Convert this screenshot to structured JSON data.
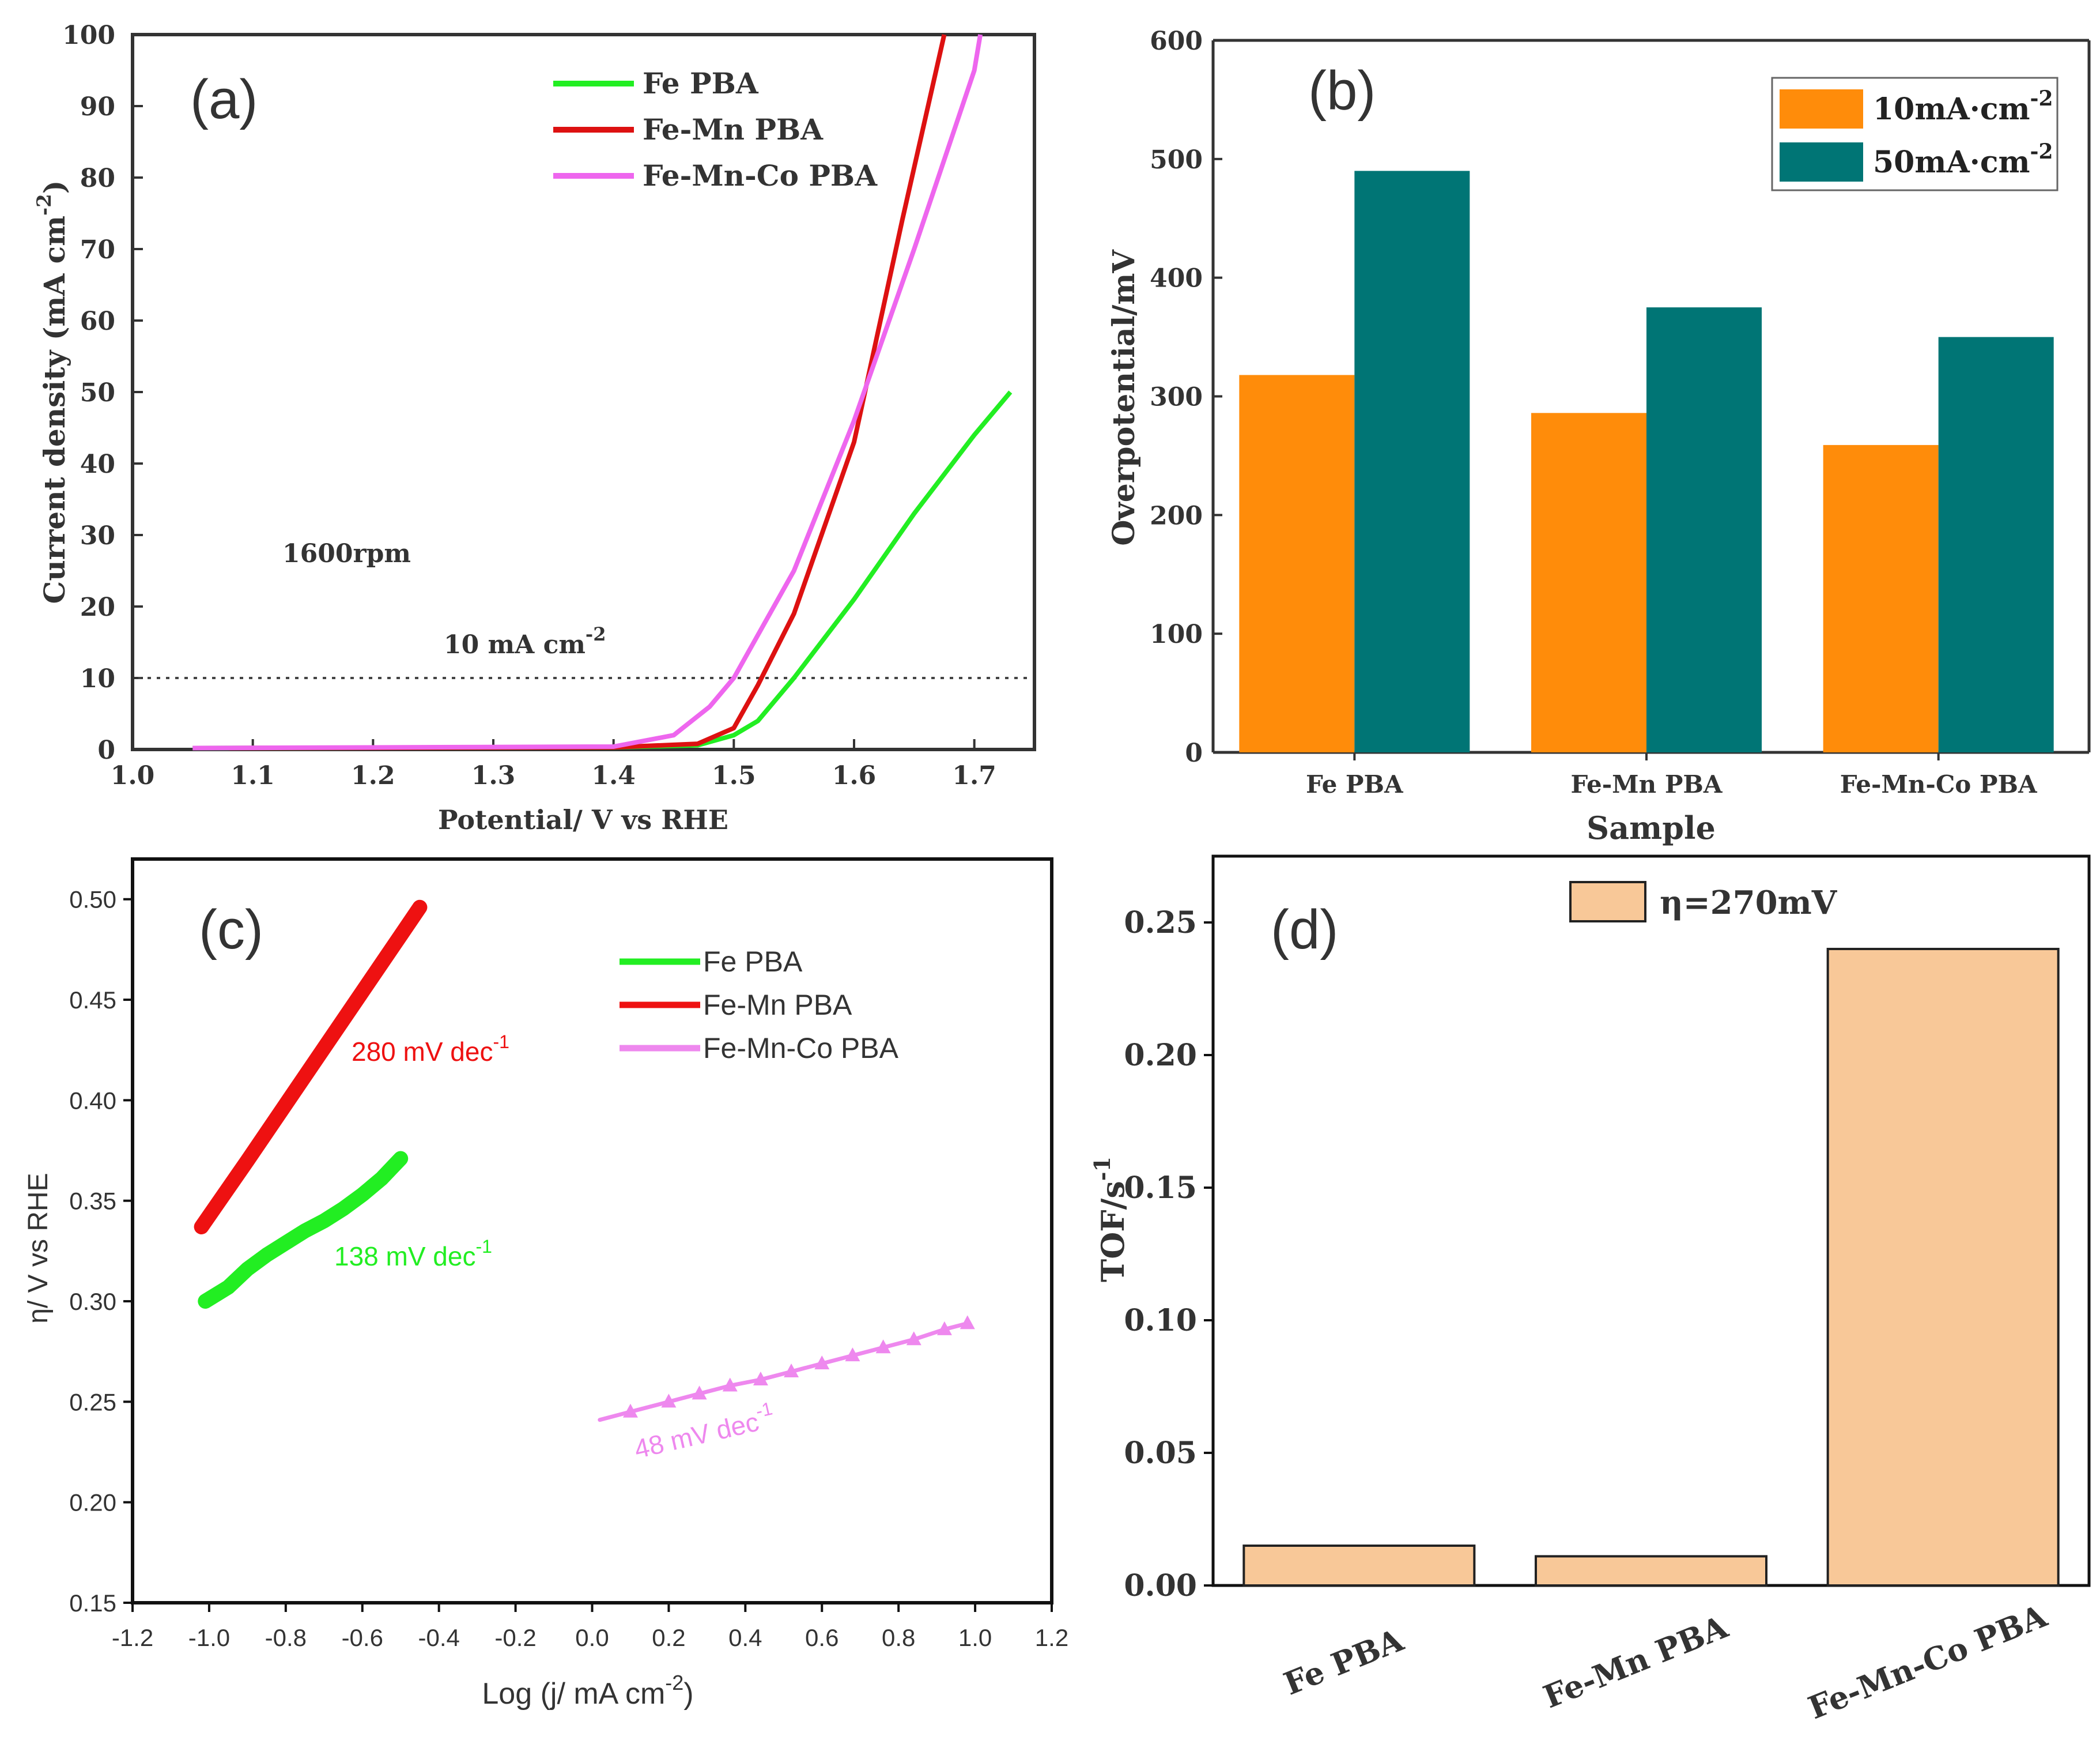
{
  "chart_data": [
    {
      "panel": "(a)",
      "type": "line",
      "xlabel": "Potential/ V vs RHE",
      "ylabel": "Current density (mA cm",
      "ylabel_sup": "-2",
      "ylabel_tail": ")",
      "xlim": [
        1.0,
        1.75
      ],
      "ylim": [
        0,
        100
      ],
      "xticks": [
        "1.0",
        "1.1",
        "1.2",
        "1.3",
        "1.4",
        "1.5",
        "1.6",
        "1.7"
      ],
      "yticks": [
        "0",
        "10",
        "20",
        "30",
        "40",
        "50",
        "60",
        "70",
        "80",
        "90",
        "100"
      ],
      "annotation_rpm": "1600rpm",
      "annotation_ref": "10 mA cm",
      "annotation_ref_sup": "-2",
      "reference_line_y": 10,
      "series": [
        {
          "name": "Fe PBA",
          "color": "#22ee22",
          "points": [
            [
              1.05,
              0.2
            ],
            [
              1.4,
              0.3
            ],
            [
              1.47,
              0.6
            ],
            [
              1.5,
              2
            ],
            [
              1.52,
              4
            ],
            [
              1.55,
              10
            ],
            [
              1.6,
              21
            ],
            [
              1.65,
              33
            ],
            [
              1.7,
              44
            ],
            [
              1.73,
              50
            ]
          ]
        },
        {
          "name": "Fe-Mn PBA",
          "color": "#dd1111",
          "points": [
            [
              1.08,
              0.2
            ],
            [
              1.4,
              0.3
            ],
            [
              1.47,
              0.8
            ],
            [
              1.5,
              3
            ],
            [
              1.52,
              9
            ],
            [
              1.55,
              19
            ],
            [
              1.6,
              43
            ],
            [
              1.64,
              74
            ],
            [
              1.675,
              100
            ]
          ]
        },
        {
          "name": "Fe-Mn-Co PBA",
          "color": "#ee66ee",
          "points": [
            [
              1.05,
              0.2
            ],
            [
              1.4,
              0.4
            ],
            [
              1.45,
              2
            ],
            [
              1.48,
              6
            ],
            [
              1.5,
              10
            ],
            [
              1.55,
              25
            ],
            [
              1.6,
              46
            ],
            [
              1.65,
              70
            ],
            [
              1.7,
              95
            ],
            [
              1.705,
              100
            ]
          ]
        }
      ]
    },
    {
      "panel": "(b)",
      "type": "bar",
      "xlabel": "Sample",
      "ylabel": "Overpotential/mV",
      "ylim": [
        0,
        600
      ],
      "yticks": [
        "0",
        "100",
        "200",
        "300",
        "400",
        "500",
        "600"
      ],
      "categories": [
        "Fe PBA",
        "Fe-Mn PBA",
        "Fe-Mn-Co PBA"
      ],
      "series": [
        {
          "name": "10mA·cm",
          "sup": "-2",
          "color": "#ff8c0a",
          "values": [
            318,
            286,
            259
          ]
        },
        {
          "name": "50mA·cm",
          "sup": "-2",
          "color": "#007575",
          "values": [
            490,
            375,
            350
          ]
        }
      ]
    },
    {
      "panel": "(c)",
      "type": "scatter",
      "xlabel": "Log (j/ mA cm",
      "xlabel_sup": "-2",
      "xlabel_tail": ")",
      "ylabel": "η/ V vs RHE",
      "xlim": [
        -1.2,
        1.2
      ],
      "ylim": [
        0.15,
        0.52
      ],
      "xticks": [
        "-1.2",
        "-1.0",
        "-0.8",
        "-0.6",
        "-0.4",
        "-0.2",
        "0.0",
        "0.2",
        "0.4",
        "0.6",
        "0.8",
        "1.0",
        "1.2"
      ],
      "yticks": [
        "0.15",
        "0.20",
        "0.25",
        "0.30",
        "0.35",
        "0.40",
        "0.45",
        "0.50"
      ],
      "series": [
        {
          "name": "Fe PBA",
          "color": "#22ee22",
          "slope_label": "138 mV dec",
          "slope_sup": "-1",
          "points": [
            [
              -1.01,
              0.3
            ],
            [
              -0.95,
              0.307
            ],
            [
              -0.9,
              0.316
            ],
            [
              -0.85,
              0.323
            ],
            [
              -0.8,
              0.329
            ],
            [
              -0.75,
              0.335
            ],
            [
              -0.7,
              0.34
            ],
            [
              -0.65,
              0.346
            ],
            [
              -0.6,
              0.353
            ],
            [
              -0.55,
              0.361
            ],
            [
              -0.5,
              0.371
            ]
          ]
        },
        {
          "name": "Fe-Mn PBA",
          "color": "#ee1111",
          "slope_label": "280 mV dec",
          "slope_sup": "-1",
          "points": [
            [
              -1.02,
              0.337
            ],
            [
              -0.9,
              0.37
            ],
            [
              -0.8,
              0.398
            ],
            [
              -0.7,
              0.426
            ],
            [
              -0.6,
              0.454
            ],
            [
              -0.5,
              0.482
            ],
            [
              -0.45,
              0.496
            ]
          ]
        },
        {
          "name": "Fe-Mn-Co PBA",
          "color": "#ee88ee",
          "slope_label": "48 mV dec",
          "slope_sup": "-1",
          "points": [
            [
              0.02,
              0.241
            ],
            [
              0.1,
              0.245
            ],
            [
              0.2,
              0.25
            ],
            [
              0.28,
              0.254
            ],
            [
              0.36,
              0.258
            ],
            [
              0.44,
              0.261
            ],
            [
              0.52,
              0.265
            ],
            [
              0.6,
              0.269
            ],
            [
              0.68,
              0.273
            ],
            [
              0.76,
              0.277
            ],
            [
              0.84,
              0.281
            ],
            [
              0.92,
              0.286
            ],
            [
              0.98,
              0.289
            ]
          ]
        }
      ]
    },
    {
      "panel": "(d)",
      "type": "bar",
      "ylabel": "TOF/s",
      "ylabel_sup": "-1",
      "ylim": [
        0,
        0.275
      ],
      "yticks": [
        "0.00",
        "0.05",
        "0.10",
        "0.15",
        "0.20",
        "0.25"
      ],
      "categories": [
        "Fe PBA",
        "Fe-Mn PBA",
        "Fe-Mn-Co PBA"
      ],
      "series": [
        {
          "name": "η=270mV",
          "color": "#f8c898",
          "values": [
            0.015,
            0.011,
            0.24
          ]
        }
      ]
    }
  ]
}
